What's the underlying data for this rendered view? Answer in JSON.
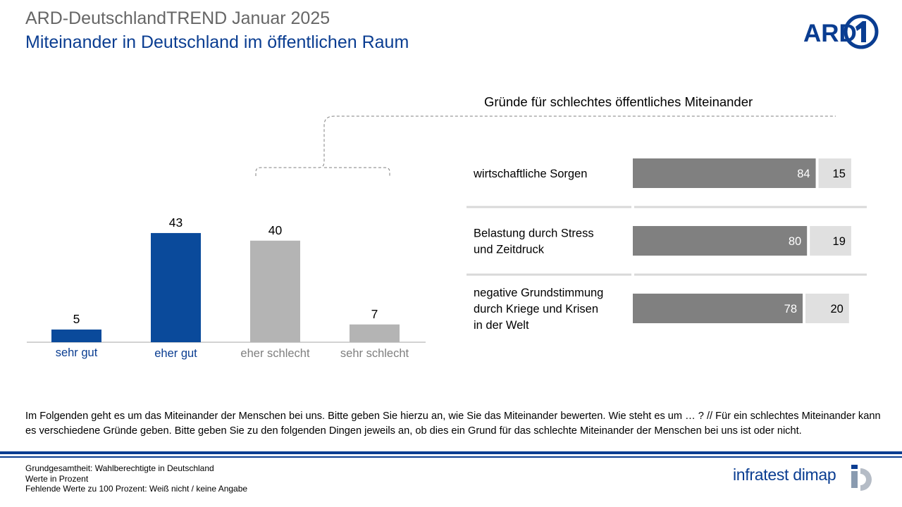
{
  "header": {
    "title": "ARD-DeutschlandTREND Januar 2025",
    "subtitle": "Miteinander in Deutschland im öffentlichen Raum",
    "logo_text": "ARD"
  },
  "chart_data": [
    {
      "type": "bar",
      "categories": [
        "sehr gut",
        "eher gut",
        "eher schlecht",
        "sehr schlecht"
      ],
      "values": [
        5,
        43,
        40,
        7
      ],
      "category_colors": [
        "#0a4a9b",
        "#0a4a9b",
        "#b4b4b4",
        "#b4b4b4"
      ],
      "label_colors": [
        "#0a3d91",
        "#0a3d91",
        "#7f7f7f",
        "#7f7f7f"
      ],
      "ylim": [
        0,
        50
      ],
      "grid": false,
      "legend": "none"
    },
    {
      "type": "bar",
      "orientation": "horizontal",
      "stacked": true,
      "title": "Gründe für schlechtes öffentliches Miteinander",
      "categories": [
        [
          "wirtschaftliche Sorgen"
        ],
        [
          "Belastung durch Stress",
          "und Zeitdruck"
        ],
        [
          "negative Grundstimmung",
          "durch Kriege und Krisen",
          "in der Welt"
        ]
      ],
      "series": [
        {
          "values": [
            84,
            80,
            78
          ],
          "color": "#808080"
        },
        {
          "values": [
            15,
            19,
            20
          ],
          "color": "#e0e0e0"
        }
      ],
      "xlim": [
        0,
        100
      ],
      "grid": false,
      "legend": "none"
    }
  ],
  "question_text": "Im Folgenden geht es um das Miteinander der Menschen bei uns. Bitte geben Sie hierzu an, wie Sie das Miteinander bewerten. Wie steht es um … ? // Für ein schlechtes Miteinander kann es verschiedene Gründe geben. Bitte geben Sie zu den folgenden Dingen jeweils an, ob dies ein Grund für das schlechte Miteinander der Menschen bei uns ist oder nicht.",
  "footer": {
    "notes": [
      "Grundgesamtheit: Wahlberechtigte in Deutschland",
      "Werte in Prozent",
      "Fehlende Werte zu 100 Prozent: Weiß nicht / keine Angabe"
    ],
    "brand": "infratest dimap"
  },
  "colors": {
    "brand_blue": "#0a3d91",
    "positive_bar": "#0a4a9b",
    "negative_bar": "#b4b4b4",
    "reason_yes": "#808080",
    "reason_no": "#e0e0e0"
  },
  "icons": [
    "ard-logo",
    "infratest-dimap-logo"
  ]
}
